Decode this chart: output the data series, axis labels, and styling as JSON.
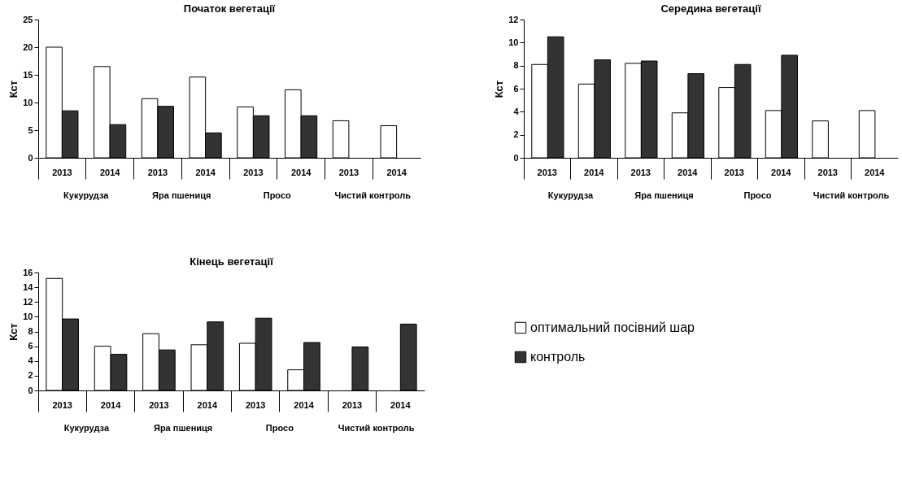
{
  "chart_data": [
    {
      "type": "bar",
      "title": "Початок вегетації",
      "ylabel": "Кст",
      "categories": [
        "2013",
        "2014",
        "2013",
        "2014",
        "2013",
        "2014",
        "2013",
        "2014"
      ],
      "annotations": [
        "Кукурудза",
        "Яра пшениця",
        "Просо",
        "Чистий контроль"
      ],
      "ylim": [
        0,
        25
      ],
      "yticks": [
        0,
        5,
        10,
        15,
        20,
        25
      ],
      "series": [
        {
          "color": "#ffffff",
          "values": [
            20,
            16.5,
            10.7,
            14.6,
            9.2,
            12.3,
            6.7,
            5.8
          ]
        },
        {
          "color": "#333333",
          "values": [
            8.5,
            6.0,
            9.3,
            4.5,
            7.6,
            7.6,
            null,
            null
          ]
        }
      ]
    },
    {
      "type": "bar",
      "title": "Середина вегетації",
      "ylabel": "Кст",
      "categories": [
        "2013",
        "2014",
        "2013",
        "2014",
        "2013",
        "2014",
        "2013",
        "2014"
      ],
      "annotations": [
        "Кукурудза",
        "Яра пшениця",
        "Просо",
        "Чистий контроль"
      ],
      "ylim": [
        0,
        12
      ],
      "yticks": [
        0,
        2,
        4,
        6,
        8,
        10,
        12
      ],
      "series": [
        {
          "color": "#ffffff",
          "values": [
            8.1,
            6.4,
            8.2,
            3.9,
            6.1,
            4.1,
            3.2,
            4.1
          ]
        },
        {
          "color": "#333333",
          "values": [
            10.5,
            8.5,
            8.4,
            7.3,
            8.1,
            8.9,
            null,
            null
          ]
        }
      ]
    },
    {
      "type": "bar",
      "title": "Кінець вегетації",
      "ylabel": "Кст",
      "categories": [
        "2013",
        "2014",
        "2013",
        "2014",
        "2013",
        "2014",
        "2013",
        "2014"
      ],
      "annotations": [
        "Кукурудза",
        "Яра пшениця",
        "Просо",
        "Чистий контроль"
      ],
      "ylim": [
        0,
        16
      ],
      "yticks": [
        0,
        2,
        4,
        6,
        8,
        10,
        12,
        14,
        16
      ],
      "legend": "right",
      "series": [
        {
          "name": "оптимальний посівний шар",
          "color": "#ffffff",
          "values": [
            15.2,
            6.0,
            7.7,
            6.2,
            6.4,
            2.8,
            null,
            null
          ]
        },
        {
          "name": "контроль",
          "color": "#333333",
          "values": [
            9.7,
            4.9,
            5.5,
            9.3,
            9.8,
            6.5,
            5.9,
            9.0
          ]
        }
      ]
    }
  ]
}
